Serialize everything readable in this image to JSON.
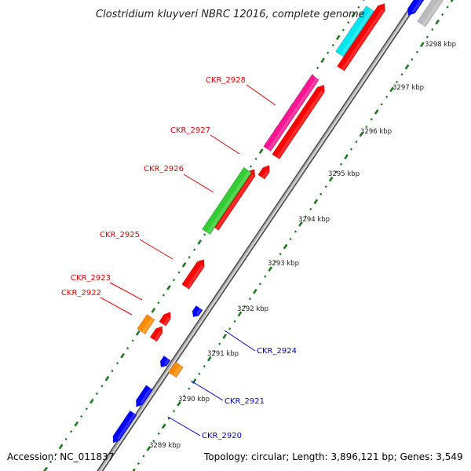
{
  "title": "Clostridium kluyveri NBRC 12016, complete genome",
  "footer": {
    "accession": "Accession: NC_011837",
    "summary": "Topology: circular; Length: 3,896,121 bp; Genes: 3,549"
  },
  "colors": {
    "backbone": "#8a8a8a",
    "tick_major": "#1f7a1f",
    "tick_minor": "#2e8b2e",
    "forward_label": "#e00000",
    "reverse_label": "#0000d0"
  },
  "scale_labels": [
    "3289 kbp",
    "3290 kbp",
    "3291 kbp",
    "3292 kbp",
    "3293 kbp",
    "3294 kbp",
    "3295 kbp",
    "3296 kbp",
    "3297 kbp",
    "3298 kbp"
  ],
  "gene_labels": [
    {
      "name": "CKR_2928",
      "strand": "forward"
    },
    {
      "name": "CKR_2927",
      "strand": "forward"
    },
    {
      "name": "CKR_2926",
      "strand": "forward"
    },
    {
      "name": "CKR_2925",
      "strand": "forward"
    },
    {
      "name": "CKR_2923",
      "strand": "forward"
    },
    {
      "name": "CKR_2922",
      "strand": "forward"
    },
    {
      "name": "CKR_2924",
      "strand": "reverse"
    },
    {
      "name": "CKR_2921",
      "strand": "reverse"
    },
    {
      "name": "CKR_2920",
      "strand": "reverse"
    }
  ],
  "features": [
    {
      "color": "#ff0000",
      "track": "forward",
      "name": "CKR_2928"
    },
    {
      "color": "#ff1493",
      "track": "forward-outer",
      "name": "CKR_2928"
    },
    {
      "color": "#ff0000",
      "track": "forward",
      "name": "CKR_2927"
    },
    {
      "color": "#ff0000",
      "track": "forward",
      "name": "CKR_2926"
    },
    {
      "color": "#33cc33",
      "track": "forward-outer",
      "name": "CKR_2926"
    },
    {
      "color": "#ff0000",
      "track": "forward",
      "name": "CKR_2925"
    },
    {
      "color": "#ff0000",
      "track": "forward",
      "name": "CKR_2923"
    },
    {
      "color": "#ff0000",
      "track": "forward",
      "name": "CKR_2922"
    },
    {
      "color": "#ff8c00",
      "track": "forward-outer",
      "name": "CKR_2922"
    },
    {
      "color": "#ff0000",
      "track": "forward",
      "name": ""
    },
    {
      "color": "#00e5ee",
      "track": "forward-outer",
      "name": ""
    },
    {
      "color": "#0000ff",
      "track": "reverse",
      "name": "CKR_2924"
    },
    {
      "color": "#0000ff",
      "track": "reverse",
      "name": ""
    },
    {
      "color": "#ff8c00",
      "track": "reverse-outer",
      "name": "CKR_2921"
    },
    {
      "color": "#0000ff",
      "track": "reverse",
      "name": "CKR_2920"
    },
    {
      "color": "#0000ff",
      "track": "reverse",
      "name": ""
    },
    {
      "color": "#0000ff",
      "track": "reverse",
      "name": ""
    },
    {
      "color": "#bbbbbb",
      "track": "reverse",
      "name": ""
    }
  ]
}
